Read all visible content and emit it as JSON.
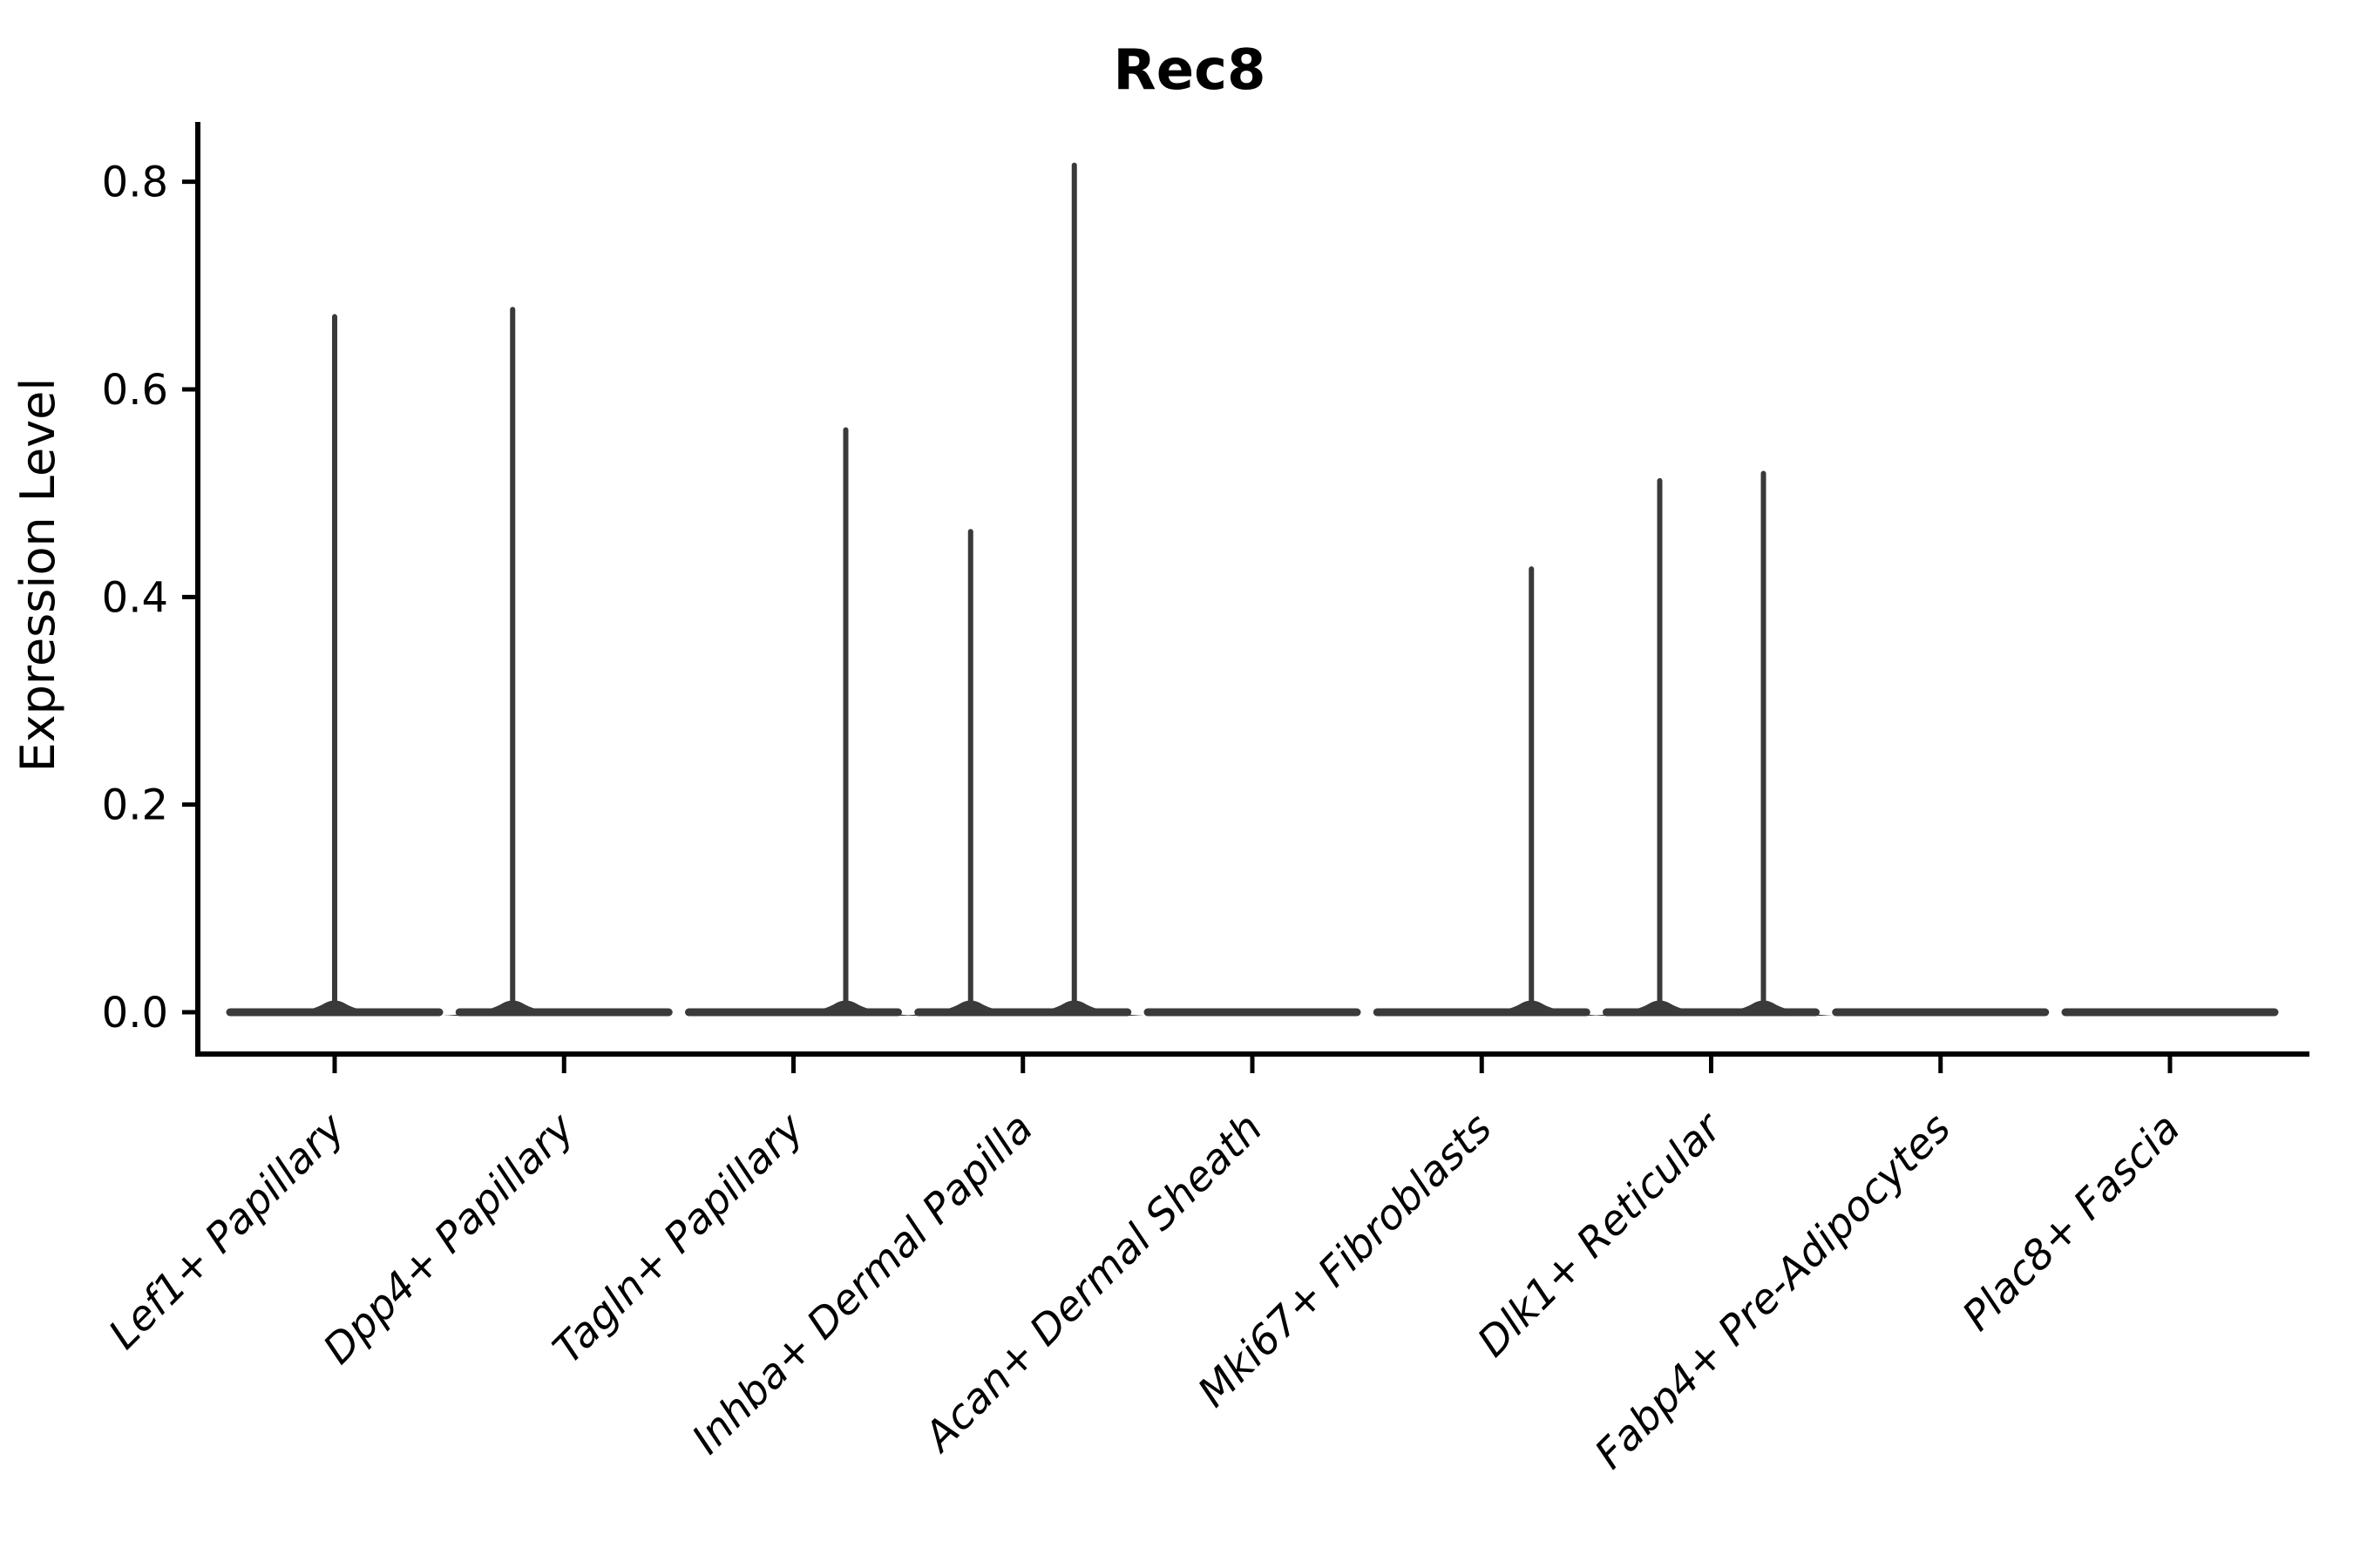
{
  "chart_data": {
    "type": "violin",
    "title": "Rec8",
    "ylabel": "Expression Level",
    "xlabel": "",
    "ylim": [
      -0.04,
      0.86
    ],
    "grid": false,
    "legend": null,
    "yticks": [
      {
        "value": 0.0,
        "label": "0.0"
      },
      {
        "value": 0.2,
        "label": "0.2"
      },
      {
        "value": 0.4,
        "label": "0.4"
      },
      {
        "value": 0.6,
        "label": "0.6"
      },
      {
        "value": 0.8,
        "label": "0.8"
      }
    ],
    "categories": [
      "Lef1+ Papillary",
      "Dpp4+ Papillary",
      "Tagln+ Papillary",
      "Inhba+ Dermal Papilla",
      "Acan+ Dermal Sheath",
      "Mki67+ Fibroblasts",
      "Dlk1+ Reticular",
      "Fabp4+ Pre-Adipocytes",
      "Plac8+ Fascia"
    ],
    "violins": [
      {
        "category": "Lef1+ Papillary",
        "base_at_zero": true,
        "spikes": [
          {
            "x_offset": 0,
            "max_expression": 0.67
          }
        ]
      },
      {
        "category": "Dpp4+ Papillary",
        "base_at_zero": true,
        "spikes": [
          {
            "x_offset": -59,
            "max_expression": 0.677
          }
        ]
      },
      {
        "category": "Tagln+ Papillary",
        "base_at_zero": true,
        "spikes": [
          {
            "x_offset": 60,
            "max_expression": 0.561
          }
        ]
      },
      {
        "category": "Inhba+ Dermal Papilla",
        "base_at_zero": true,
        "spikes": [
          {
            "x_offset": -60,
            "max_expression": 0.463
          },
          {
            "x_offset": 59,
            "max_expression": 0.816
          }
        ]
      },
      {
        "category": "Acan+ Dermal Sheath",
        "base_at_zero": true,
        "spikes": []
      },
      {
        "category": "Mki67+ Fibroblasts",
        "base_at_zero": true,
        "spikes": [
          {
            "x_offset": 57,
            "max_expression": 0.427
          }
        ]
      },
      {
        "category": "Dlk1+ Reticular",
        "base_at_zero": true,
        "spikes": [
          {
            "x_offset": -59,
            "max_expression": 0.512
          },
          {
            "x_offset": 60,
            "max_expression": 0.519
          }
        ]
      },
      {
        "category": "Fabp4+ Pre-Adipocytes",
        "base_at_zero": true,
        "spikes": []
      },
      {
        "category": "Plac8+ Fascia",
        "base_at_zero": true,
        "spikes": []
      }
    ],
    "colors": {
      "violin": "#3a3a3a",
      "axis": "#000000",
      "background": "#ffffff"
    }
  }
}
